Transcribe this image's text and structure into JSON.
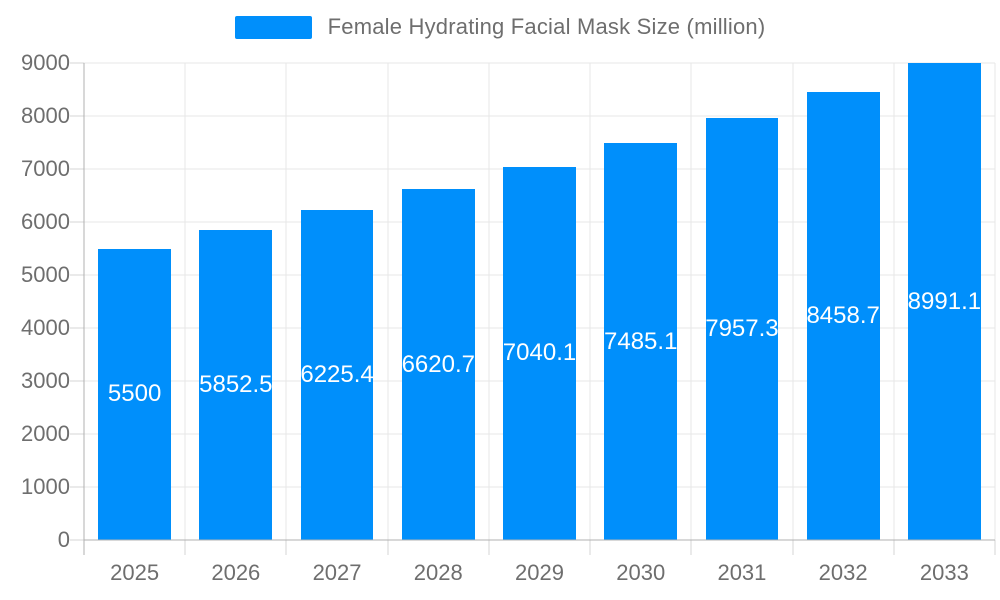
{
  "legend": {
    "label": "Female Hydrating Facial Mask Size (million)"
  },
  "colors": {
    "bar": "#008FFB",
    "grid": "#e7e7e7",
    "axis": "#b0b0b0",
    "tick": "#d4d4d4",
    "text": "#6e6e6e",
    "value_text": "#ffffff",
    "background": "#ffffff"
  },
  "chart_data": {
    "type": "bar",
    "title": "Female Hydrating Facial Mask Size (million)",
    "categories": [
      "2025",
      "2026",
      "2027",
      "2028",
      "2029",
      "2030",
      "2031",
      "2032",
      "2033"
    ],
    "values": [
      5500,
      5852.5,
      6225.4,
      6620.7,
      7040.1,
      7485.1,
      7957.3,
      8458.7,
      8991.1
    ],
    "xlabel": "",
    "ylabel": "",
    "ylim": [
      0,
      9000
    ],
    "ytick_step": 1000,
    "ytick_labels": [
      "0",
      "1000",
      "2000",
      "3000",
      "4000",
      "5000",
      "6000",
      "7000",
      "8000",
      "9000"
    ],
    "grid": true,
    "grid_vertical": true,
    "legend_position": "top-center",
    "bar_label_position": "middle",
    "bar_width_fraction": 0.72
  }
}
